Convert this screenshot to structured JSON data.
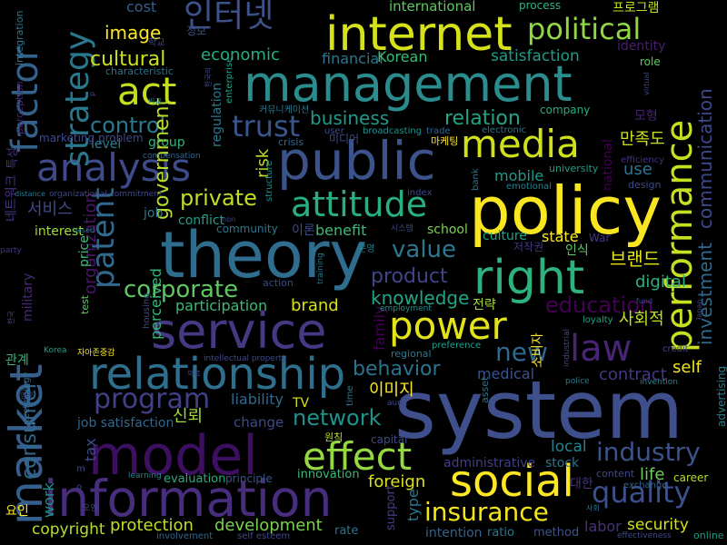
{
  "words": [
    {
      "text": "management",
      "color": "#2a8c8d"
    },
    {
      "text": "system",
      "color": "#3f4f8c"
    },
    {
      "text": "policy",
      "color": "#f7e620"
    },
    {
      "text": "theory",
      "color": "#2f6d8e"
    },
    {
      "text": "model",
      "color": "#3d0f60"
    },
    {
      "text": "information",
      "color": "#472d7b"
    },
    {
      "text": "public",
      "color": "#3b528b"
    },
    {
      "text": "service",
      "color": "#443983"
    },
    {
      "text": "relationship",
      "color": "#2e6f8e"
    },
    {
      "text": "internet",
      "color": "#d5e21a"
    },
    {
      "text": "market",
      "color": "#35608d"
    },
    {
      "text": "analysis",
      "color": "#3e4a89"
    },
    {
      "text": "performance",
      "color": "#c6e021"
    },
    {
      "text": "right",
      "color": "#2db27d"
    },
    {
      "text": "power",
      "color": "#e3e418"
    },
    {
      "text": "social",
      "color": "#fde725"
    },
    {
      "text": "law",
      "color": "#482475"
    },
    {
      "text": "media",
      "color": "#d0e11c"
    },
    {
      "text": "effect",
      "color": "#95d840"
    },
    {
      "text": "act",
      "color": "#c5df1f"
    },
    {
      "text": "factor",
      "color": "#33638d"
    },
    {
      "text": "attitude",
      "color": "#29af7f"
    },
    {
      "text": "program",
      "color": "#424086"
    },
    {
      "text": "political",
      "color": "#90d743"
    },
    {
      "text": "인터넷",
      "color": "#3b528b"
    },
    {
      "text": "patent",
      "color": "#31688e"
    },
    {
      "text": "strategy",
      "color": "#2a788e"
    },
    {
      "text": "quality",
      "color": "#3c508b"
    },
    {
      "text": "insurance",
      "color": "#f4e61e"
    },
    {
      "text": "industry",
      "color": "#3b528b"
    },
    {
      "text": "corporate",
      "color": "#5ec962"
    },
    {
      "text": "network",
      "color": "#21918c"
    },
    {
      "text": "behavior",
      "color": "#2c728e"
    },
    {
      "text": "value",
      "color": "#2a788e"
    },
    {
      "text": "product",
      "color": "#414487"
    },
    {
      "text": "trust",
      "color": "#39568c"
    },
    {
      "text": "control",
      "color": "#2a788e"
    },
    {
      "text": "investment",
      "color": "#31688e"
    },
    {
      "text": "communication",
      "color": "#3e4989"
    },
    {
      "text": "education",
      "color": "#440154"
    },
    {
      "text": "new",
      "color": "#31688e"
    },
    {
      "text": "private",
      "color": "#bddf26"
    },
    {
      "text": "knowledge",
      "color": "#21a585"
    },
    {
      "text": "image",
      "color": "#fde725"
    },
    {
      "text": "cultural",
      "color": "#c8e020"
    },
    {
      "text": "economic",
      "color": "#25ac82"
    },
    {
      "text": "business",
      "color": "#1f9a8a"
    },
    {
      "text": "relation",
      "color": "#20a486"
    },
    {
      "text": "financial",
      "color": "#2a788e"
    },
    {
      "text": "Korean",
      "color": "#3bbb75"
    },
    {
      "text": "satisfaction",
      "color": "#1f9e89"
    },
    {
      "text": "international",
      "color": "#5ec962"
    },
    {
      "text": "process",
      "color": "#2db27d"
    },
    {
      "text": "프로그램",
      "color": "#c2df23"
    },
    {
      "text": "identity",
      "color": "#481f70"
    },
    {
      "text": "government",
      "color": "#b8de29"
    },
    {
      "text": "conflict",
      "color": "#1f9e89"
    },
    {
      "text": "organization",
      "color": "#481467"
    },
    {
      "text": "perceived",
      "color": "#35b779"
    },
    {
      "text": "participation",
      "color": "#3bbb75"
    },
    {
      "text": "brand",
      "color": "#d8e219"
    },
    {
      "text": "family",
      "color": "#440154"
    },
    {
      "text": "liability",
      "color": "#31688e"
    },
    {
      "text": "TV",
      "color": "#d8e219"
    },
    {
      "text": "change",
      "color": "#3e4989"
    },
    {
      "text": "job satisfaction",
      "color": "#31688e"
    },
    {
      "text": "신뢰",
      "color": "#9fda3a"
    },
    {
      "text": "local",
      "color": "#25838e"
    },
    {
      "text": "administrative",
      "color": "#433e85"
    },
    {
      "text": "stock",
      "color": "#2b758e"
    },
    {
      "text": "foreign",
      "color": "#dde318"
    },
    {
      "text": "life",
      "color": "#6ccd5a"
    },
    {
      "text": "career",
      "color": "#b5de2b"
    },
    {
      "text": "exchange",
      "color": "#33638d"
    },
    {
      "text": "content",
      "color": "#3e4989"
    },
    {
      "text": "대한",
      "color": "#46327e"
    },
    {
      "text": "consumer",
      "color": "#31688e"
    },
    {
      "text": "work",
      "color": "#21918c"
    },
    {
      "text": "tax",
      "color": "#3e4989"
    },
    {
      "text": "copyright",
      "color": "#b5de2b"
    },
    {
      "text": "protection",
      "color": "#bddf26"
    },
    {
      "text": "development",
      "color": "#7ad151"
    },
    {
      "text": "rate",
      "color": "#2c728e"
    },
    {
      "text": "intention",
      "color": "#33638d"
    },
    {
      "text": "ratio",
      "color": "#2a788e"
    },
    {
      "text": "method",
      "color": "#3b528b"
    },
    {
      "text": "labor",
      "color": "#46327e"
    },
    {
      "text": "security",
      "color": "#d2e21b"
    },
    {
      "text": "online",
      "color": "#1f9e89"
    },
    {
      "text": "evaluation",
      "color": "#26ad81"
    },
    {
      "text": "principle",
      "color": "#3b528b"
    },
    {
      "text": "innovation",
      "color": "#3bbb75"
    },
    {
      "text": "support",
      "color": "#433e85"
    },
    {
      "text": "type",
      "color": "#2a788e"
    },
    {
      "text": "medical",
      "color": "#3b528b"
    },
    {
      "text": "contract",
      "color": "#453781"
    },
    {
      "text": "self",
      "color": "#f1e51d"
    },
    {
      "text": "digital",
      "color": "#2db27d"
    },
    {
      "text": "사회적",
      "color": "#c2df23"
    },
    {
      "text": "loyalty",
      "color": "#20a486"
    },
    {
      "text": "credit",
      "color": "#3e4989"
    },
    {
      "text": "advertising",
      "color": "#26828e"
    },
    {
      "text": "culture",
      "color": "#20a386"
    },
    {
      "text": "state",
      "color": "#fde725"
    },
    {
      "text": "War",
      "color": "#443a83"
    },
    {
      "text": "브랜드",
      "color": "#e5e419"
    },
    {
      "text": "인식",
      "color": "#5ec962"
    },
    {
      "text": "저작권",
      "color": "#443983"
    },
    {
      "text": "전략",
      "color": "#a2da37"
    },
    {
      "text": "fund",
      "color": "#3b528b"
    },
    {
      "text": "mobile",
      "color": "#1f9a8a"
    },
    {
      "text": "school",
      "color": "#7ad151"
    },
    {
      "text": "benefit",
      "color": "#3bbb75"
    },
    {
      "text": "이론",
      "color": "#3e4989"
    },
    {
      "text": "community",
      "color": "#2a788e"
    },
    {
      "text": "use",
      "color": "#2c728e"
    },
    {
      "text": "만족도",
      "color": "#c8e020"
    },
    {
      "text": "national",
      "color": "#440154"
    },
    {
      "text": "university",
      "color": "#1f9e89"
    },
    {
      "text": "design",
      "color": "#3e4989"
    },
    {
      "text": "risk",
      "color": "#b8de29"
    },
    {
      "text": "crisis",
      "color": "#31688e"
    },
    {
      "text": "미디어",
      "color": "#3e4989"
    },
    {
      "text": "마케팅",
      "color": "#fde725"
    },
    {
      "text": "company",
      "color": "#25ac82"
    },
    {
      "text": "efficiency",
      "color": "#46327e"
    },
    {
      "text": "모형",
      "color": "#482475"
    },
    {
      "text": "role",
      "color": "#5ec962"
    },
    {
      "text": "서비스",
      "color": "#3e4989"
    },
    {
      "text": "interest",
      "color": "#9fda3a"
    },
    {
      "text": "job",
      "color": "#2a788e"
    },
    {
      "text": "price",
      "color": "#3bbb75"
    },
    {
      "text": "military",
      "color": "#482878"
    },
    {
      "text": "level",
      "color": "#26828e"
    },
    {
      "text": "group",
      "color": "#2db27d"
    },
    {
      "text": "regulation",
      "color": "#2a788e"
    },
    {
      "text": "structure",
      "color": "#21918c"
    },
    {
      "text": "marketing problem",
      "color": "#3e4989"
    },
    {
      "text": "perception",
      "color": "#482475"
    },
    {
      "text": "integration",
      "color": "#2a788e"
    },
    {
      "text": "cost",
      "color": "#35608d"
    },
    {
      "text": "정보",
      "color": "#3b528b"
    },
    {
      "text": "characteristic",
      "color": "#2c728e"
    },
    {
      "text": "enterprise",
      "color": "#20a486"
    },
    {
      "text": "커뮤니케이션",
      "color": "#2a788e"
    },
    {
      "text": "user",
      "color": "#3e4989"
    },
    {
      "text": "broadcasting",
      "color": "#21918c"
    },
    {
      "text": "trade",
      "color": "#31688e"
    },
    {
      "text": "electronic",
      "color": "#2c728e"
    },
    {
      "text": "이미지",
      "color": "#fde725"
    },
    {
      "text": "원칙",
      "color": "#bddf26"
    },
    {
      "text": "capital",
      "color": "#3e4989"
    },
    {
      "text": "소비자",
      "color": "#fde725"
    },
    {
      "text": "asset",
      "color": "#2a788e"
    },
    {
      "text": "audit",
      "color": "#3e4989"
    },
    {
      "text": "time",
      "color": "#2a788e"
    },
    {
      "text": "Korea",
      "color": "#1f9e89"
    },
    {
      "text": "자아존중감",
      "color": "#fde725"
    },
    {
      "text": "intellectual property",
      "color": "#3e4989"
    },
    {
      "text": "regional",
      "color": "#2a788e"
    },
    {
      "text": "preference",
      "color": "#1f9e89"
    },
    {
      "text": "industrial",
      "color": "#3e4989"
    },
    {
      "text": "police",
      "color": "#2a788e"
    },
    {
      "text": "invention",
      "color": "#26828e"
    },
    {
      "text": "employment",
      "color": "#21918c"
    },
    {
      "text": "housing",
      "color": "#3e4989"
    },
    {
      "text": "test",
      "color": "#5ec962"
    },
    {
      "text": "training",
      "color": "#2a788e"
    },
    {
      "text": "action",
      "color": "#3e4989"
    },
    {
      "text": "시스템",
      "color": "#3e4989"
    },
    {
      "text": "index",
      "color": "#3e4989"
    },
    {
      "text": "bank",
      "color": "#2c728e"
    },
    {
      "text": "emotional",
      "color": "#26828e"
    },
    {
      "text": "organizational commitment",
      "color": "#3e4989"
    },
    {
      "text": "compensation",
      "color": "#31688e"
    },
    {
      "text": "네트워크",
      "color": "#46327e"
    },
    {
      "text": "특성",
      "color": "#46327e"
    },
    {
      "text": "관계",
      "color": "#35b779"
    },
    {
      "text": "party",
      "color": "#46327e"
    },
    {
      "text": "based",
      "color": "#2a788e"
    },
    {
      "text": "technology",
      "color": "#31688e"
    },
    {
      "text": "요인",
      "color": "#fde725"
    },
    {
      "text": "learning",
      "color": "#26828e"
    },
    {
      "text": "오염",
      "color": "#3e4989"
    },
    {
      "text": "involvement",
      "color": "#31688e"
    },
    {
      "text": "self esteem",
      "color": "#3e4989"
    },
    {
      "text": "effectiveness",
      "color": "#3e4989"
    },
    {
      "text": "사회",
      "color": "#2a788e"
    },
    {
      "text": "Japan",
      "color": "#3e4989"
    },
    {
      "text": "영향",
      "color": "#3e4989"
    },
    {
      "text": "한국",
      "color": "#3e4989"
    },
    {
      "text": "비교",
      "color": "#26828e"
    },
    {
      "text": "distance",
      "color": "#2a788e"
    },
    {
      "text": "의료",
      "color": "#3e4989"
    },
    {
      "text": "학교",
      "color": "#3e4989"
    },
    {
      "text": "m",
      "color": "#3e4989"
    },
    {
      "text": "o",
      "color": "#3e4989"
    },
    {
      "text": "p",
      "color": "#3e4989"
    },
    {
      "text": "non",
      "color": "#3e4989"
    },
    {
      "text": "virtual",
      "color": "#3e4989"
    },
    {
      "text": "한국의",
      "color": "#3e4989"
    },
    {
      "text": "운영",
      "color": "#26828e"
    },
    {
      "text": "및",
      "color": "#fde725"
    }
  ]
}
